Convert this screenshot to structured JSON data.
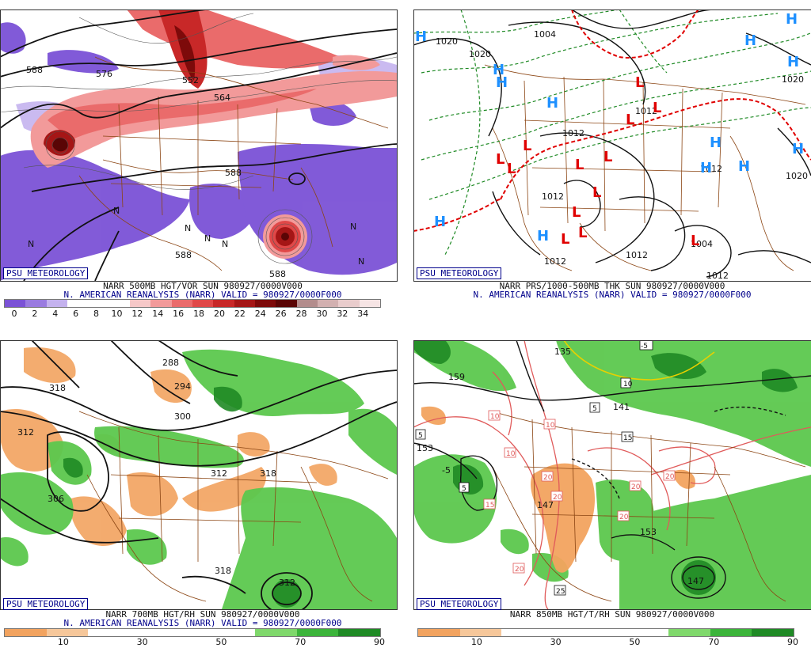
{
  "panels": [
    {
      "brand": "PSU METEOROLOGY",
      "line1": "NARR 500MB HGT/VOR SUN 980927/0000V000",
      "line2": "N. AMERICAN REANALYSIS (NARR) VALID = 980927/0000F000",
      "labels": [
        "588",
        "576",
        "552",
        "564",
        "588",
        "588",
        "588",
        "N",
        "N",
        "N",
        "N",
        "N",
        "N",
        "N"
      ],
      "colorbar": {
        "ticks": [
          "0",
          "2",
          "4",
          "6",
          "8",
          "10",
          "12",
          "14",
          "16",
          "18",
          "20",
          "22",
          "24",
          "26",
          "28",
          "30",
          "32",
          "34"
        ],
        "colors": [
          "#7b52d6",
          "#9a7be0",
          "#c4b2ee",
          "#ffffff",
          "#ffffff",
          "#ffffff",
          "#f6c8c8",
          "#f29a9a",
          "#ea6b6b",
          "#e04848",
          "#c82828",
          "#a51616",
          "#7d0a0a",
          "#5a0505",
          "#b38d8d",
          "#d2b0b0",
          "#e9cccc",
          "#f6e4e4"
        ]
      }
    },
    {
      "brand": "PSU METEOROLOGY",
      "line1": "NARR PRS/1000-500MB THK SUN 980927/0000V000",
      "line2": "N. AMERICAN REANALYSIS (NARR) VALID = 980927/0000F000",
      "isobars": [
        "1020",
        "1004",
        "1020",
        "1020",
        "1012",
        "1012",
        "1012",
        "1012",
        "1004",
        "1020",
        "1012",
        "1012",
        "1012"
      ],
      "highs": [
        "H",
        "H",
        "H",
        "H",
        "H",
        "H",
        "H",
        "H",
        "H",
        "H",
        "H",
        "H",
        "H"
      ],
      "lows": [
        "L",
        "L",
        "L",
        "L",
        "L",
        "L",
        "L",
        "L",
        "L",
        "L",
        "L",
        "L",
        "L"
      ]
    },
    {
      "brand": "PSU METEOROLOGY",
      "line1": "NARR 700MB HGT/RH SUN 980927/0000V000",
      "line2": "N. AMERICAN REANALYSIS (NARR) VALID = 980927/0000F000",
      "labels": [
        "318",
        "288",
        "294",
        "312",
        "300",
        "306",
        "312",
        "318",
        "318",
        "312"
      ],
      "colorbar": {
        "ticks": [
          "10",
          "30",
          "50",
          "70",
          "90"
        ],
        "colors": [
          "#f2a35f",
          "#f6c79a",
          "#ffffff",
          "#ffffff",
          "#ffffff",
          "#ffffff",
          "#7fd86b",
          "#3bb43a",
          "#1f8a25"
        ]
      }
    },
    {
      "brand": "PSU METEOROLOGY",
      "line1": "NARR 850MB HGT/T/RH SUN 980927/0000V000",
      "line2": "",
      "labels": [
        "159",
        "135",
        "153",
        "147",
        "153",
        "147",
        "141",
        "-5",
        "5",
        "5",
        "5",
        "10",
        "10",
        "10",
        "10",
        "15",
        "15",
        "20",
        "20",
        "20",
        "20",
        "20",
        "20",
        "25",
        "-5"
      ],
      "colorbar": {
        "ticks": [
          "10",
          "30",
          "50",
          "70",
          "90"
        ],
        "colors": [
          "#f2a35f",
          "#f6c79a",
          "#ffffff",
          "#ffffff",
          "#ffffff",
          "#ffffff",
          "#7fd86b",
          "#3bb43a",
          "#1f8a25"
        ]
      }
    }
  ]
}
